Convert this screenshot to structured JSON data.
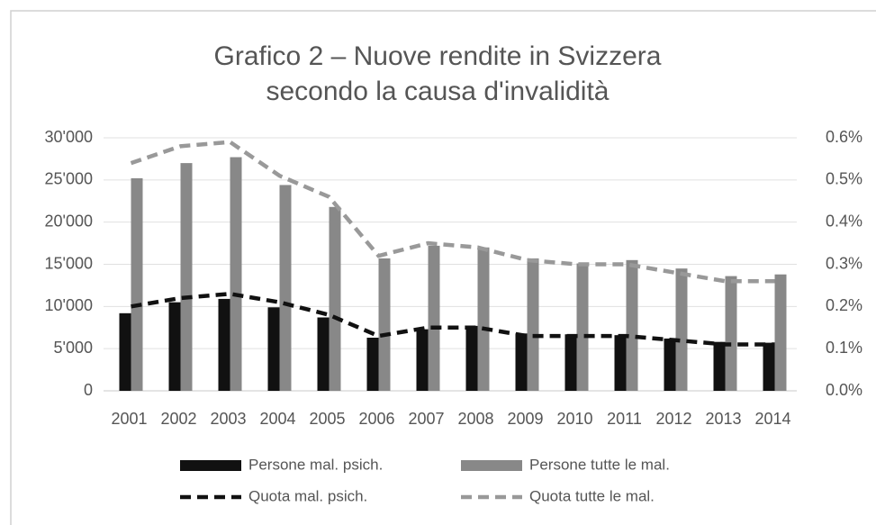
{
  "chart_data": {
    "type": "bar",
    "title": [
      "Grafico 2 – Nuove rendite in Svizzera",
      "secondo la causa d'invalidità"
    ],
    "categories": [
      "2001",
      "2002",
      "2003",
      "2004",
      "2005",
      "2006",
      "2007",
      "2008",
      "2009",
      "2010",
      "2011",
      "2012",
      "2013",
      "2014"
    ],
    "series": [
      {
        "name": "Persone mal. psich.",
        "type": "bar",
        "color": "#111111",
        "values": [
          9200,
          10500,
          10900,
          9900,
          8700,
          6300,
          7300,
          7700,
          6800,
          6700,
          6600,
          6200,
          5800,
          5700
        ]
      },
      {
        "name": "Persone tutte le mal.",
        "type": "bar",
        "color": "#888888",
        "values": [
          25200,
          27000,
          27700,
          24400,
          21800,
          15700,
          17200,
          17000,
          15700,
          15100,
          15500,
          14500,
          13600,
          13800
        ]
      },
      {
        "name": "Quota mal. psich.",
        "type": "line",
        "axis": "y2",
        "color": "#111111",
        "values": [
          0.2,
          0.22,
          0.23,
          0.21,
          0.18,
          0.13,
          0.15,
          0.15,
          0.13,
          0.13,
          0.13,
          0.12,
          0.11,
          0.11
        ]
      },
      {
        "name": "Quota tutte le mal.",
        "type": "line",
        "axis": "y2",
        "color": "#999999",
        "values": [
          0.54,
          0.58,
          0.59,
          0.51,
          0.46,
          0.32,
          0.35,
          0.34,
          0.31,
          0.3,
          0.3,
          0.28,
          0.26,
          0.26
        ]
      }
    ],
    "ylim": [
      0,
      30000
    ],
    "yticks": [
      0,
      {
        "value": 5000,
        "label": "5'000"
      },
      {
        "value": 10000,
        "label": "10'000"
      },
      {
        "value": 15000,
        "label": "15'000"
      },
      {
        "value": 20000,
        "label": "20'000"
      },
      {
        "value": 25000,
        "label": "25'000"
      },
      {
        "value": 30000,
        "label": "30'000"
      }
    ],
    "y2lim": [
      0,
      0.6
    ],
    "y2ticks": [
      {
        "value": 0,
        "label": "0.0%"
      },
      {
        "value": 0.1,
        "label": "0.1%"
      },
      {
        "value": 0.2,
        "label": "0.2%"
      },
      {
        "value": 0.3,
        "label": "0.3%"
      },
      {
        "value": 0.4,
        "label": "0.4%"
      },
      {
        "value": 0.5,
        "label": "0.5%"
      },
      {
        "value": 0.6,
        "label": "0.6%"
      }
    ],
    "grid": true,
    "legend": "bottom"
  }
}
